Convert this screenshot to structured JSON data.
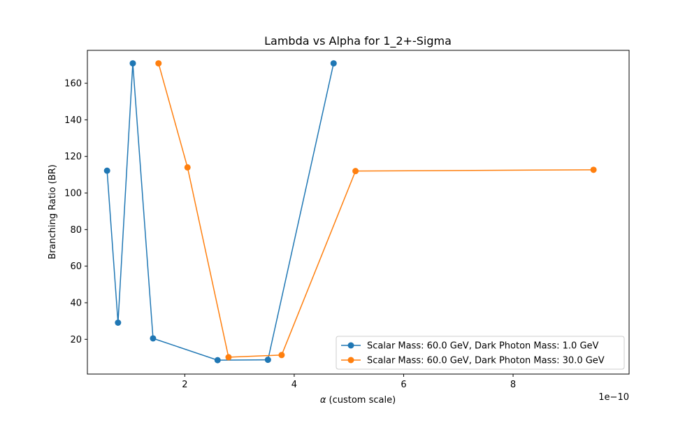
{
  "chart_data": {
    "type": "line",
    "title": "Lambda vs Alpha for 1_2+-Sigma",
    "xlabel_symbol": "α",
    "xlabel_rest": " (custom scale)",
    "ylabel": "Branching Ratio (BR)",
    "x_offset_label": "1e−10",
    "xlim": [
      0.22,
      10.12
    ],
    "ylim": [
      1.0,
      178.0
    ],
    "x_ticks": [
      2,
      4,
      6,
      8
    ],
    "y_ticks": [
      20,
      40,
      60,
      80,
      100,
      120,
      140,
      160
    ],
    "grid": false,
    "legend_position": "lower-right",
    "series": [
      {
        "name": "Scalar Mass: 60.0 GeV, Dark Photon Mass: 1.0 GeV",
        "color": "#1f77b4",
        "x": [
          0.58,
          0.78,
          1.05,
          1.42,
          2.6,
          3.52,
          4.72
        ],
        "y": [
          112.2,
          29.1,
          170.9,
          20.5,
          8.6,
          8.8,
          170.9
        ]
      },
      {
        "name": "Scalar Mass: 60.0 GeV, Dark Photon Mass: 30.0 GeV",
        "color": "#ff7f0e",
        "x": [
          1.52,
          2.05,
          2.8,
          3.77,
          5.12,
          9.47
        ],
        "y": [
          170.9,
          114.0,
          10.2,
          11.4,
          112.0,
          112.7
        ]
      }
    ]
  }
}
